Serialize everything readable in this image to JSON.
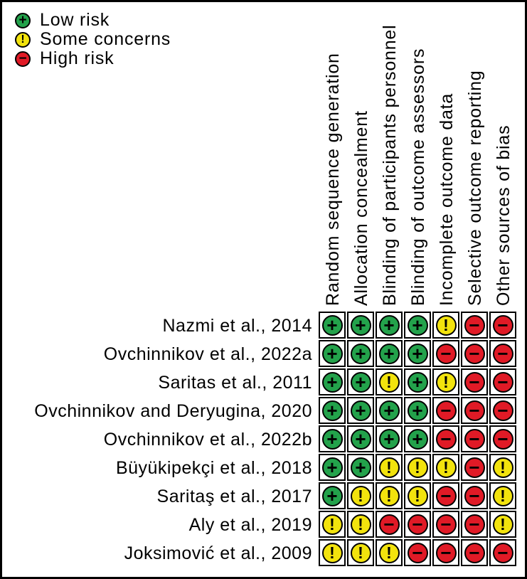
{
  "legend": {
    "items": [
      {
        "label": "Low risk",
        "judgement": "low"
      },
      {
        "label": "Some concerns",
        "judgement": "some"
      },
      {
        "label": "High risk",
        "judgement": "high"
      }
    ]
  },
  "chart_data": {
    "type": "heatmap",
    "columns": [
      "Random sequence generation",
      "Allocation concealment",
      "Blinding of participants personnel",
      "Blinding of outcome assessors",
      "Incomplete outcome data",
      "Selective outcome reporting",
      "Other sources of bias"
    ],
    "rows": [
      "Nazmi et al., 2014",
      "Ovchinnikov et al., 2022a",
      "Saritas et al., 2011",
      "Ovchinnikov and Deryugina, 2020",
      "Ovchinnikov et al., 2022b",
      "Büyükipekçi et al., 2018",
      "Saritaş et al., 2017",
      "Aly et al., 2019",
      "Joksimović et al., 2009"
    ],
    "values": [
      [
        "low",
        "low",
        "low",
        "low",
        "some",
        "high",
        "high"
      ],
      [
        "low",
        "low",
        "low",
        "low",
        "high",
        "high",
        "high"
      ],
      [
        "low",
        "low",
        "some",
        "low",
        "some",
        "high",
        "high"
      ],
      [
        "low",
        "low",
        "low",
        "low",
        "high",
        "high",
        "high"
      ],
      [
        "low",
        "low",
        "low",
        "low",
        "high",
        "high",
        "high"
      ],
      [
        "low",
        "low",
        "some",
        "some",
        "some",
        "high",
        "some"
      ],
      [
        "low",
        "some",
        "some",
        "some",
        "high",
        "high",
        "some"
      ],
      [
        "some",
        "some",
        "high",
        "high",
        "high",
        "high",
        "some"
      ],
      [
        "some",
        "some",
        "some",
        "high",
        "high",
        "high",
        "high"
      ]
    ],
    "symbols": {
      "low": "+",
      "some": "!",
      "high": "−"
    },
    "colors": {
      "low": "#23A24B",
      "some": "#F2E30D",
      "high": "#E01A26"
    },
    "legend_entries": [
      "Low risk",
      "Some concerns",
      "High risk"
    ],
    "legend_position": "top-left",
    "grid": "on"
  }
}
